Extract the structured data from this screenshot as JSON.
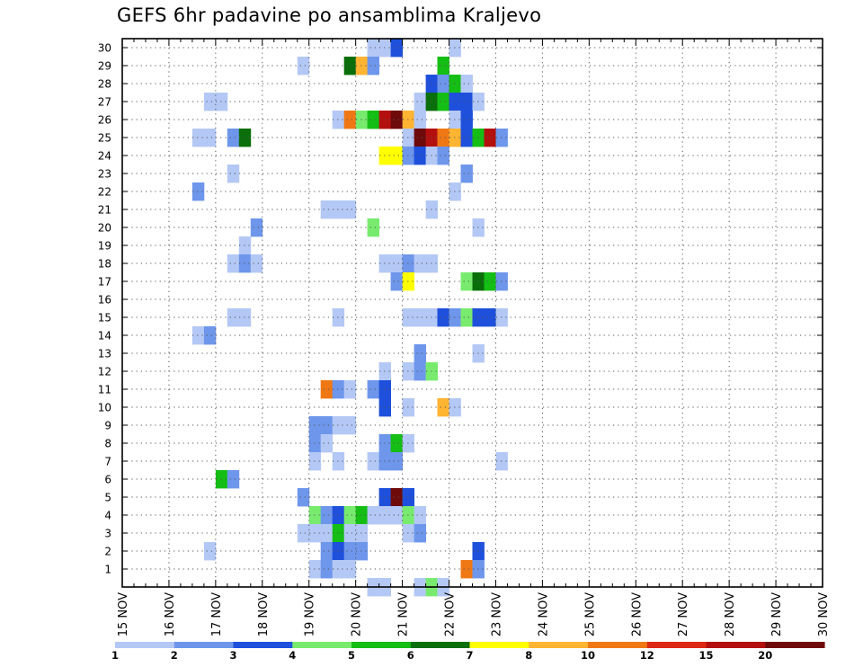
{
  "chart_data": {
    "type": "heatmap",
    "title": "GEFS 6hr padavine po ansamblima Kraljevo",
    "x_ticks": [
      "15 NOV",
      "16 NOV",
      "17 NOV",
      "18 NOV",
      "19 NOV",
      "20 NOV",
      "21 NOV",
      "22 NOV",
      "23 NOV",
      "24 NOV",
      "25 NOV",
      "26 NOV",
      "27 NOV",
      "28 NOV",
      "29 NOV",
      "30 NOV"
    ],
    "y_ticks": [
      "1",
      "2",
      "3",
      "4",
      "5",
      "6",
      "7",
      "8",
      "9",
      "10",
      "11",
      "12",
      "13",
      "14",
      "15",
      "16",
      "17",
      "18",
      "19",
      "20",
      "21",
      "22",
      "23",
      "24",
      "25",
      "26",
      "27",
      "28",
      "29",
      "30"
    ],
    "xlim": [
      0,
      60
    ],
    "ylim": [
      0,
      30.5
    ],
    "grid": true,
    "colorbar": {
      "labels": [
        "1",
        "2",
        "3",
        "4",
        "5",
        "6",
        "7",
        "8",
        "10",
        "12",
        "15",
        "20"
      ],
      "colors": [
        "#b4c8f5",
        "#6e96eb",
        "#1e50dc",
        "#78eb6e",
        "#14be14",
        "#0a6e0a",
        "#ffff00",
        "#ffb432",
        "#f07814",
        "#dc2814",
        "#b40f0f",
        "#6e0a0a"
      ]
    },
    "cells_note": "member, step, class",
    "cells": [
      [
        30,
        21,
        0
      ],
      [
        30,
        22,
        0
      ],
      [
        30,
        23,
        2
      ],
      [
        30,
        28,
        0
      ],
      [
        29,
        15,
        0
      ],
      [
        29,
        19,
        5
      ],
      [
        29,
        20,
        7
      ],
      [
        29,
        21,
        1
      ],
      [
        29,
        27,
        4
      ],
      [
        28,
        26,
        2
      ],
      [
        28,
        27,
        1
      ],
      [
        28,
        28,
        4
      ],
      [
        28,
        29,
        0
      ],
      [
        27,
        7,
        0
      ],
      [
        27,
        8,
        0
      ],
      [
        27,
        25,
        0
      ],
      [
        27,
        26,
        5
      ],
      [
        27,
        27,
        4
      ],
      [
        27,
        28,
        2
      ],
      [
        27,
        29,
        2
      ],
      [
        27,
        30,
        0
      ],
      [
        26,
        18,
        0
      ],
      [
        26,
        19,
        8
      ],
      [
        26,
        20,
        3
      ],
      [
        26,
        21,
        4
      ],
      [
        26,
        22,
        10
      ],
      [
        26,
        23,
        11
      ],
      [
        26,
        24,
        7
      ],
      [
        26,
        25,
        0
      ],
      [
        26,
        28,
        0
      ],
      [
        26,
        29,
        2
      ],
      [
        25,
        6,
        0
      ],
      [
        25,
        7,
        0
      ],
      [
        25,
        9,
        1
      ],
      [
        25,
        10,
        5
      ],
      [
        25,
        24,
        0
      ],
      [
        25,
        25,
        11
      ],
      [
        25,
        26,
        10
      ],
      [
        25,
        27,
        8
      ],
      [
        25,
        28,
        7
      ],
      [
        25,
        29,
        2
      ],
      [
        25,
        30,
        4
      ],
      [
        25,
        31,
        10
      ],
      [
        25,
        32,
        1
      ],
      [
        24,
        22,
        6
      ],
      [
        24,
        23,
        6
      ],
      [
        24,
        24,
        1
      ],
      [
        24,
        25,
        2
      ],
      [
        24,
        26,
        0
      ],
      [
        24,
        27,
        1
      ],
      [
        23,
        9,
        0
      ],
      [
        23,
        29,
        1
      ],
      [
        22,
        6,
        1
      ],
      [
        22,
        28,
        0
      ],
      [
        21,
        17,
        0
      ],
      [
        21,
        18,
        0
      ],
      [
        21,
        19,
        0
      ],
      [
        21,
        26,
        0
      ],
      [
        20,
        11,
        1
      ],
      [
        20,
        21,
        3
      ],
      [
        20,
        30,
        0
      ],
      [
        19,
        10,
        0
      ],
      [
        18,
        9,
        0
      ],
      [
        18,
        10,
        1
      ],
      [
        18,
        11,
        0
      ],
      [
        18,
        22,
        0
      ],
      [
        18,
        23,
        0
      ],
      [
        18,
        24,
        1
      ],
      [
        18,
        25,
        0
      ],
      [
        18,
        26,
        0
      ],
      [
        17,
        23,
        1
      ],
      [
        17,
        24,
        6
      ],
      [
        17,
        29,
        3
      ],
      [
        17,
        30,
        5
      ],
      [
        17,
        31,
        4
      ],
      [
        17,
        32,
        1
      ],
      [
        15,
        9,
        0
      ],
      [
        15,
        10,
        0
      ],
      [
        15,
        18,
        0
      ],
      [
        15,
        24,
        0
      ],
      [
        15,
        25,
        0
      ],
      [
        15,
        26,
        0
      ],
      [
        15,
        27,
        2
      ],
      [
        15,
        28,
        1
      ],
      [
        15,
        29,
        3
      ],
      [
        15,
        30,
        2
      ],
      [
        15,
        31,
        2
      ],
      [
        15,
        32,
        0
      ],
      [
        14,
        6,
        0
      ],
      [
        14,
        7,
        1
      ],
      [
        13,
        25,
        1
      ],
      [
        13,
        30,
        0
      ],
      [
        12,
        22,
        0
      ],
      [
        12,
        24,
        0
      ],
      [
        12,
        25,
        1
      ],
      [
        12,
        26,
        3
      ],
      [
        11,
        17,
        8
      ],
      [
        11,
        18,
        1
      ],
      [
        11,
        19,
        0
      ],
      [
        11,
        21,
        1
      ],
      [
        11,
        22,
        2
      ],
      [
        10,
        22,
        2
      ],
      [
        10,
        24,
        0
      ],
      [
        10,
        27,
        7
      ],
      [
        10,
        28,
        0
      ],
      [
        9,
        16,
        1
      ],
      [
        9,
        17,
        1
      ],
      [
        9,
        18,
        0
      ],
      [
        9,
        19,
        0
      ],
      [
        8,
        16,
        1
      ],
      [
        8,
        17,
        0
      ],
      [
        8,
        22,
        1
      ],
      [
        8,
        23,
        4
      ],
      [
        8,
        24,
        0
      ],
      [
        7,
        16,
        0
      ],
      [
        7,
        18,
        0
      ],
      [
        7,
        21,
        0
      ],
      [
        7,
        22,
        1
      ],
      [
        7,
        23,
        1
      ],
      [
        7,
        32,
        0
      ],
      [
        6,
        8,
        4
      ],
      [
        6,
        9,
        1
      ],
      [
        5,
        15,
        1
      ],
      [
        5,
        22,
        2
      ],
      [
        5,
        23,
        11
      ],
      [
        5,
        24,
        2
      ],
      [
        4,
        16,
        3
      ],
      [
        4,
        17,
        1
      ],
      [
        4,
        18,
        2
      ],
      [
        4,
        19,
        3
      ],
      [
        4,
        20,
        4
      ],
      [
        4,
        21,
        0
      ],
      [
        4,
        22,
        0
      ],
      [
        4,
        23,
        0
      ],
      [
        4,
        24,
        3
      ],
      [
        4,
        25,
        0
      ],
      [
        3,
        15,
        0
      ],
      [
        3,
        16,
        0
      ],
      [
        3,
        17,
        0
      ],
      [
        3,
        18,
        4
      ],
      [
        3,
        19,
        0
      ],
      [
        3,
        20,
        0
      ],
      [
        3,
        24,
        0
      ],
      [
        3,
        25,
        1
      ],
      [
        2,
        7,
        0
      ],
      [
        2,
        17,
        1
      ],
      [
        2,
        18,
        2
      ],
      [
        2,
        19,
        1
      ],
      [
        2,
        20,
        1
      ],
      [
        2,
        30,
        2
      ],
      [
        1,
        16,
        0
      ],
      [
        1,
        17,
        1
      ],
      [
        1,
        18,
        0
      ],
      [
        1,
        19,
        0
      ],
      [
        1,
        29,
        8
      ],
      [
        1,
        30,
        1
      ],
      [
        0,
        21,
        0
      ],
      [
        0,
        22,
        0
      ],
      [
        0,
        25,
        0
      ],
      [
        0,
        26,
        3
      ],
      [
        0,
        27,
        0
      ]
    ]
  }
}
